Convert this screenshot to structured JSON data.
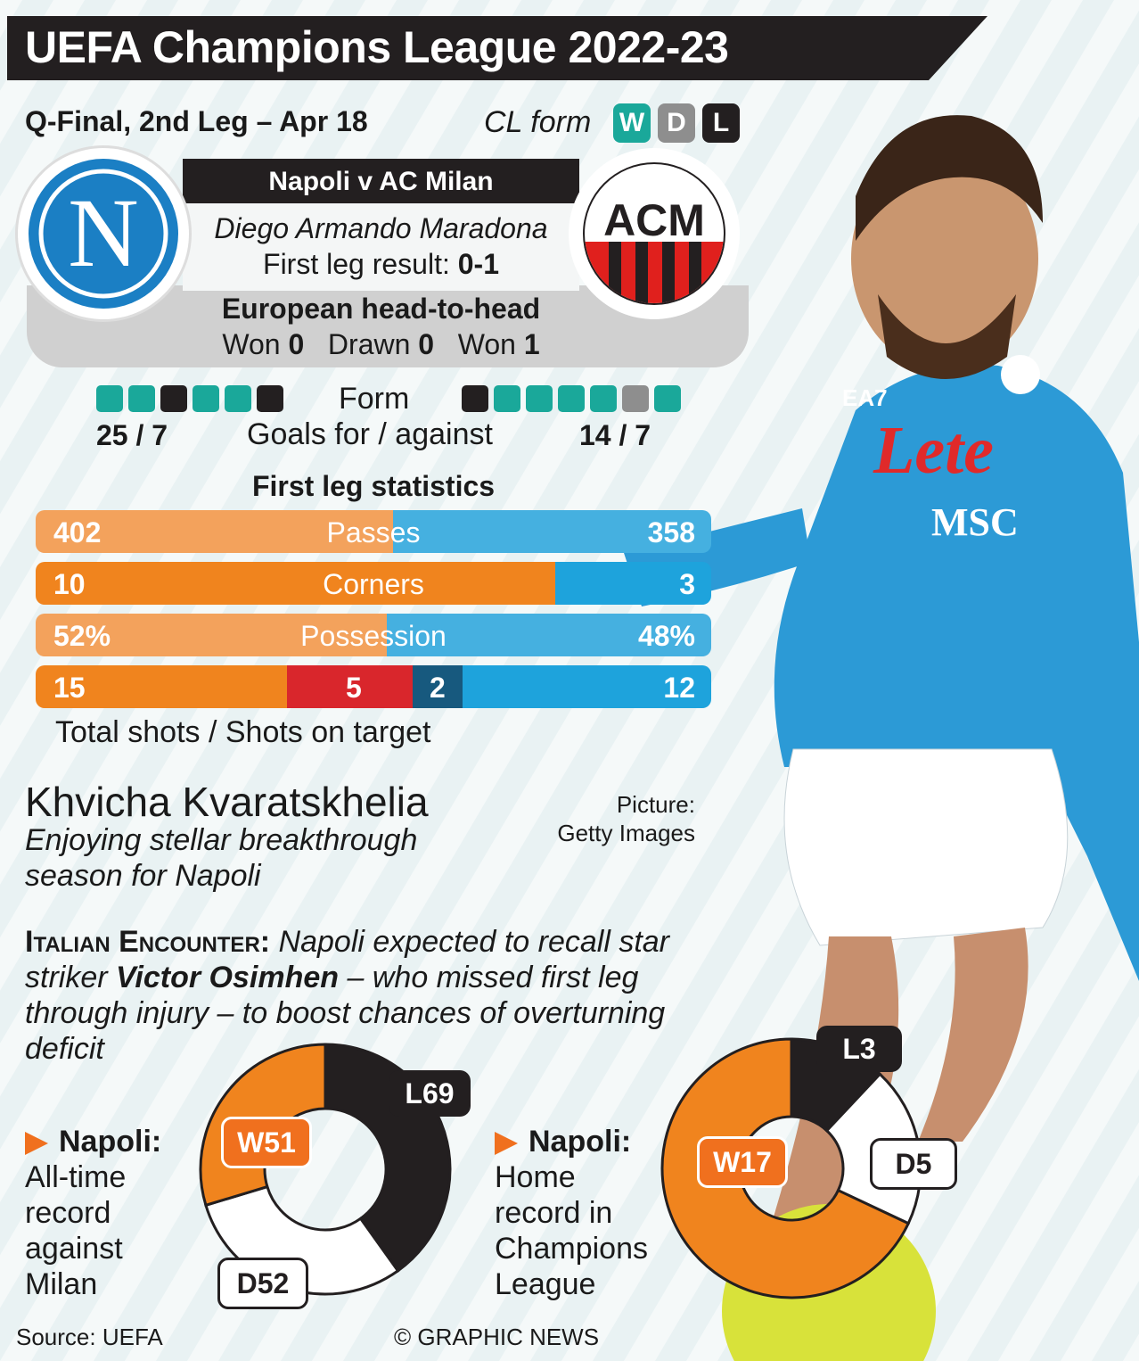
{
  "title": "UEFA Champions League 2022-23",
  "match": {
    "stage": "Q-Final, 2nd Leg – Apr 18",
    "cl_form_label": "CL form",
    "form_keys": [
      "W",
      "D",
      "L"
    ],
    "fixture": "Napoli v AC Milan",
    "venue": "Diego Armando Maradona",
    "first_leg_label": "First leg result:",
    "first_leg_score": "0-1",
    "badge_napoli": "N",
    "badge_milan": "ACM"
  },
  "head_to_head": {
    "title": "European head-to-head",
    "won_label": "Won",
    "napoli_won": "0",
    "drawn_label": "Drawn",
    "drawn": "0",
    "won_label_2": "Won",
    "milan_won": "1"
  },
  "form": {
    "label": "Form",
    "napoli": [
      "W",
      "W",
      "L",
      "W",
      "W",
      "L"
    ],
    "milan": [
      "L",
      "W",
      "W",
      "W",
      "W",
      "D",
      "W"
    ],
    "goals_label": "Goals for / against",
    "napoli_goals": "25 / 7",
    "milan_goals": "14 / 7"
  },
  "stats": {
    "title": "First leg statistics",
    "rows": [
      {
        "label": "Passes",
        "napoli": "402",
        "milan": "358",
        "napoli_value": 402,
        "milan_value": 358
      },
      {
        "label": "Corners",
        "napoli": "10",
        "milan": "3",
        "napoli_value": 10,
        "milan_value": 3
      },
      {
        "label": "Possession",
        "napoli": "52%",
        "milan": "48%",
        "napoli_value": 52,
        "milan_value": 48
      }
    ],
    "shots": {
      "napoli_total": "15",
      "napoli_on_target": "5",
      "milan_on_target": "2",
      "milan_total": "12"
    },
    "shots_label": "Total shots / Shots on target"
  },
  "player": {
    "name": "Khvicha Kvaratskhelia",
    "caption": "Enjoying stellar breakthrough season for Napoli",
    "credit_1": "Picture:",
    "credit_2": "Getty Images",
    "shirt_sponsor": "Lete",
    "shirt_sponsor_2": "MSC",
    "shirt_kit": "EA7"
  },
  "story": {
    "lead": "Italian Encounter:",
    "text_1": "Napoli expected to recall star striker",
    "name": "Victor Osimhen",
    "text_2": "– who missed first leg through injury – to boost chances of overturning deficit"
  },
  "records": [
    {
      "team": "Napoli:",
      "desc": [
        "All-time",
        "record",
        "against",
        "Milan"
      ],
      "won": "W51",
      "drawn": "D52",
      "lost": "L69",
      "w": 51,
      "d": 52,
      "l": 69
    },
    {
      "team": "Napoli:",
      "desc": [
        "Home",
        "record in",
        "Champions",
        "League"
      ],
      "won": "W17",
      "drawn": "D5",
      "lost": "L3",
      "w": 17,
      "d": 5,
      "l": 3
    }
  ],
  "footer": {
    "source": "Source: UEFA",
    "copyright": "© GRAPHIC NEWS"
  },
  "colors": {
    "win": "#1aa89a",
    "draw": "#8e8e8e",
    "loss": "#231f20",
    "napoli": "#f0841e",
    "milan": "#1ea3dc",
    "dark": "#231f20"
  }
}
